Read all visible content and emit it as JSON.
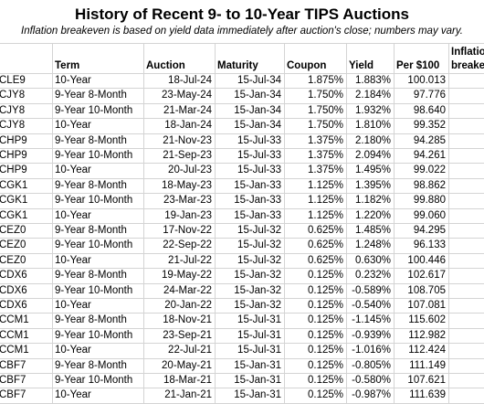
{
  "header": {
    "title": "History of Recent 9- to 10-Year TIPS Auctions",
    "subtitle": "Inflation breakeven is based on yield data immediately after auction's close; numbers may vary."
  },
  "table": {
    "columns": [
      "Term",
      "Auction",
      "Maturity",
      "Coupon",
      "Yield",
      "Per $100",
      "Inflatio breake"
    ],
    "rows": [
      [
        "CLE9",
        "10-Year",
        "18-Jul-24",
        "15-Jul-34",
        "1.875%",
        "1.883%",
        "100.013"
      ],
      [
        "CJY8",
        "9-Year 8-Month",
        "23-May-24",
        "15-Jan-34",
        "1.750%",
        "2.184%",
        "97.776"
      ],
      [
        "CJY8",
        "9-Year 10-Month",
        "21-Mar-24",
        "15-Jan-34",
        "1.750%",
        "1.932%",
        "98.640"
      ],
      [
        "CJY8",
        "10-Year",
        "18-Jan-24",
        "15-Jan-34",
        "1.750%",
        "1.810%",
        "99.352"
      ],
      [
        "CHP9",
        "9-Year 8-Month",
        "21-Nov-23",
        "15-Jul-33",
        "1.375%",
        "2.180%",
        "94.285"
      ],
      [
        "CHP9",
        "9-Year 10-Month",
        "21-Sep-23",
        "15-Jul-33",
        "1.375%",
        "2.094%",
        "94.261"
      ],
      [
        "CHP9",
        "10-Year",
        "20-Jul-23",
        "15-Jul-33",
        "1.375%",
        "1.495%",
        "99.022"
      ],
      [
        "CGK1",
        "9-Year 8-Month",
        "18-May-23",
        "15-Jan-33",
        "1.125%",
        "1.395%",
        "98.862"
      ],
      [
        "CGK1",
        "9-Year 10-Month",
        "23-Mar-23",
        "15-Jan-33",
        "1.125%",
        "1.182%",
        "99.880"
      ],
      [
        "CGK1",
        "10-Year",
        "19-Jan-23",
        "15-Jan-33",
        "1.125%",
        "1.220%",
        "99.060"
      ],
      [
        "CEZ0",
        "9-Year 8-Month",
        "17-Nov-22",
        "15-Jul-32",
        "0.625%",
        "1.485%",
        "94.295"
      ],
      [
        "CEZ0",
        "9-Year 10-Month",
        "22-Sep-22",
        "15-Jul-32",
        "0.625%",
        "1.248%",
        "96.133"
      ],
      [
        "CEZ0",
        "10-Year",
        "21-Jul-22",
        "15-Jul-32",
        "0.625%",
        "0.630%",
        "100.446"
      ],
      [
        "CDX6",
        "9-Year 8-Month",
        "19-May-22",
        "15-Jan-32",
        "0.125%",
        "0.232%",
        "102.617"
      ],
      [
        "CDX6",
        "9-Year 10-Month",
        "24-Mar-22",
        "15-Jan-32",
        "0.125%",
        "-0.589%",
        "108.705"
      ],
      [
        "CDX6",
        "10-Year",
        "20-Jan-22",
        "15-Jan-32",
        "0.125%",
        "-0.540%",
        "107.081"
      ],
      [
        "CCM1",
        "9-Year 8-Month",
        "18-Nov-21",
        "15-Jul-31",
        "0.125%",
        "-1.145%",
        "115.602"
      ],
      [
        "CCM1",
        "9-Year 10-Month",
        "23-Sep-21",
        "15-Jul-31",
        "0.125%",
        "-0.939%",
        "112.982"
      ],
      [
        "CCM1",
        "10-Year",
        "22-Jul-21",
        "15-Jul-31",
        "0.125%",
        "-1.016%",
        "112.424"
      ],
      [
        "CBF7",
        "9-Year 8-Month",
        "20-May-21",
        "15-Jan-31",
        "0.125%",
        "-0.805%",
        "111.149"
      ],
      [
        "CBF7",
        "9-Year 10-Month",
        "18-Mar-21",
        "15-Jan-31",
        "0.125%",
        "-0.580%",
        "107.621"
      ],
      [
        "CBF7",
        "10-Year",
        "21-Jan-21",
        "15-Jan-31",
        "0.125%",
        "-0.987%",
        "111.639"
      ]
    ]
  }
}
